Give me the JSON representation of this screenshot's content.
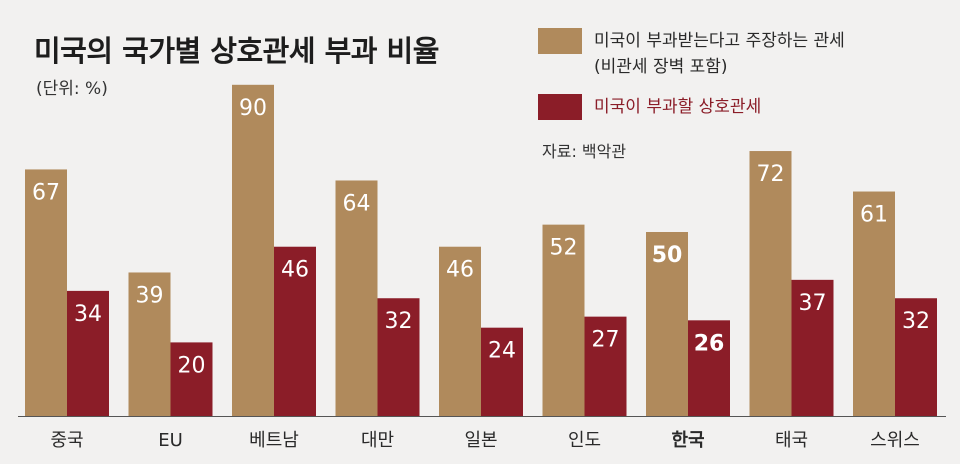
{
  "title": "미국의 국가별 상호관세 부과 비율",
  "unit": "(단위: %)",
  "source": "자료: 백악관",
  "legend": {
    "series1_line1": "미국이 부과받는다고 주장하는 관세",
    "series1_line2": "(비관세 장벽 포함)",
    "series2": "미국이 부과할 상호관세"
  },
  "colors": {
    "background": "#f2f1f0",
    "series1": "#b08a5c",
    "series2": "#8b1d28",
    "axis": "#555555"
  },
  "chart_data": {
    "type": "bar",
    "categories": [
      "중국",
      "EU",
      "베트남",
      "대만",
      "일본",
      "인도",
      "한국",
      "태국",
      "스위스"
    ],
    "highlight_category": "한국",
    "series": [
      {
        "name": "미국이 부과받는다고 주장하는 관세 (비관세 장벽 포함)",
        "values": [
          67,
          39,
          90,
          64,
          46,
          52,
          50,
          72,
          61
        ]
      },
      {
        "name": "미국이 부과할 상호관세",
        "values": [
          34,
          20,
          46,
          32,
          24,
          27,
          26,
          37,
          32
        ]
      }
    ],
    "title": "미국의 국가별 상호관세 부과 비율",
    "ylabel": "",
    "xlabel": "",
    "ylim": [
      0,
      100
    ],
    "grid": false,
    "legend_position": "top-right",
    "data_labels": true
  }
}
